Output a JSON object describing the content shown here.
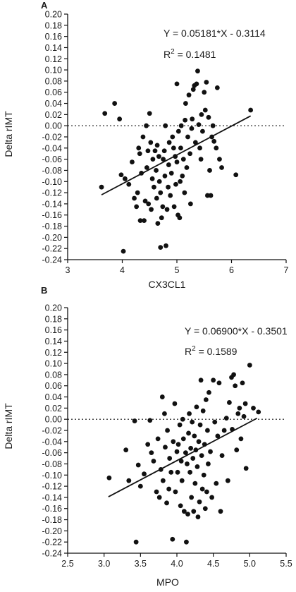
{
  "chart_data": [
    {
      "type": "scatter",
      "panel_label": "A",
      "xlabel": "CX3CL1",
      "ylabel": "Delta rIMT",
      "xlim": [
        3,
        7
      ],
      "ylim": [
        -0.24,
        0.2
      ],
      "x_ticks": [
        "3",
        "4",
        "5",
        "6",
        "7"
      ],
      "y_ticks": [
        "-0.24",
        "-0.22",
        "-0.20",
        "-0.18",
        "-0.16",
        "-0.14",
        "-0.12",
        "-0.10",
        "-0.08",
        "-0.06",
        "-0.04",
        "-0.02",
        "0.00",
        "0.02",
        "0.04",
        "0.06",
        "0.08",
        "0.10",
        "0.12",
        "0.14",
        "0.16",
        "0.18",
        "0.20"
      ],
      "reference_line_y": 0.0,
      "regression": {
        "slope": 0.05181,
        "intercept": -0.3114,
        "x_range": [
          3.62,
          6.35
        ]
      },
      "equation": "Y = 0.05181*X - 0.3114",
      "r2_prefix": "R",
      "r2_sup": "2",
      "r2_suffix": " = 0.1481",
      "points": [
        [
          3.62,
          -0.11
        ],
        [
          3.68,
          0.022
        ],
        [
          3.86,
          0.04
        ],
        [
          3.95,
          0.012
        ],
        [
          3.98,
          -0.088
        ],
        [
          4.05,
          -0.095
        ],
        [
          4.02,
          -0.225
        ],
        [
          4.12,
          -0.105
        ],
        [
          4.18,
          -0.065
        ],
        [
          4.22,
          -0.13
        ],
        [
          4.26,
          -0.145
        ],
        [
          4.28,
          -0.12
        ],
        [
          4.3,
          -0.04
        ],
        [
          4.32,
          -0.05
        ],
        [
          4.33,
          -0.17
        ],
        [
          4.35,
          -0.085
        ],
        [
          4.38,
          -0.02
        ],
        [
          4.4,
          -0.17
        ],
        [
          4.42,
          -0.135
        ],
        [
          4.44,
          0.0
        ],
        [
          4.45,
          -0.075
        ],
        [
          4.47,
          -0.045
        ],
        [
          4.48,
          -0.14
        ],
        [
          4.5,
          0.022
        ],
        [
          4.52,
          -0.03
        ],
        [
          4.53,
          -0.15
        ],
        [
          4.55,
          -0.095
        ],
        [
          4.56,
          -0.06
        ],
        [
          4.58,
          -0.11
        ],
        [
          4.6,
          -0.045
        ],
        [
          4.62,
          -0.08
        ],
        [
          4.63,
          -0.13
        ],
        [
          4.64,
          -0.035
        ],
        [
          4.65,
          -0.175
        ],
        [
          4.67,
          -0.055
        ],
        [
          4.68,
          -0.1
        ],
        [
          4.7,
          -0.12
        ],
        [
          4.7,
          -0.218
        ],
        [
          4.72,
          -0.165
        ],
        [
          4.74,
          -0.145
        ],
        [
          4.75,
          -0.06
        ],
        [
          4.77,
          -0.045
        ],
        [
          4.78,
          -0.09
        ],
        [
          4.79,
          0.0
        ],
        [
          4.8,
          -0.215
        ],
        [
          4.82,
          -0.15
        ],
        [
          4.84,
          -0.11
        ],
        [
          4.85,
          -0.07
        ],
        [
          4.86,
          -0.03
        ],
        [
          4.88,
          -0.125
        ],
        [
          4.9,
          -0.085
        ],
        [
          4.92,
          -0.02
        ],
        [
          4.94,
          -0.04
        ],
        [
          4.95,
          -0.145
        ],
        [
          4.97,
          -0.055
        ],
        [
          4.98,
          -0.105
        ],
        [
          5.0,
          0.075
        ],
        [
          5.0,
          -0.065
        ],
        [
          5.02,
          -0.16
        ],
        [
          5.03,
          -0.01
        ],
        [
          5.05,
          -0.165
        ],
        [
          5.06,
          -0.1
        ],
        [
          5.07,
          -0.04
        ],
        [
          5.08,
          0.0
        ],
        [
          5.1,
          -0.09
        ],
        [
          5.12,
          -0.06
        ],
        [
          5.14,
          -0.12
        ],
        [
          5.15,
          0.01
        ],
        [
          5.16,
          0.04
        ],
        [
          5.18,
          -0.075
        ],
        [
          5.2,
          -0.02
        ],
        [
          5.22,
          0.055
        ],
        [
          5.24,
          -0.05
        ],
        [
          5.25,
          -0.14
        ],
        [
          5.27,
          -0.005
        ],
        [
          5.28,
          0.012
        ],
        [
          5.3,
          0.065
        ],
        [
          5.32,
          0.072
        ],
        [
          5.34,
          -0.03
        ],
        [
          5.36,
          0.075
        ],
        [
          5.38,
          0.098
        ],
        [
          5.4,
          0.002
        ],
        [
          5.42,
          -0.04
        ],
        [
          5.44,
          -0.06
        ],
        [
          5.45,
          0.02
        ],
        [
          5.47,
          -0.01
        ],
        [
          5.5,
          0.06
        ],
        [
          5.52,
          0.028
        ],
        [
          5.54,
          0.078
        ],
        [
          5.56,
          -0.125
        ],
        [
          5.58,
          0.015
        ],
        [
          5.6,
          -0.08
        ],
        [
          5.62,
          -0.125
        ],
        [
          5.64,
          -0.02
        ],
        [
          5.66,
          0.0
        ],
        [
          5.68,
          -0.028
        ],
        [
          5.72,
          -0.04
        ],
        [
          5.74,
          0.068
        ],
        [
          5.78,
          -0.06
        ],
        [
          5.82,
          -0.075
        ],
        [
          6.08,
          -0.088
        ],
        [
          6.35,
          0.028
        ]
      ]
    },
    {
      "type": "scatter",
      "panel_label": "B",
      "xlabel": "MPO",
      "ylabel": "Delta rIMT",
      "xlim": [
        2.5,
        5.5
      ],
      "ylim": [
        -0.24,
        0.2
      ],
      "x_ticks": [
        "2.5",
        "3.0",
        "3.5",
        "4.0",
        "4.5",
        "5.0",
        "5.5"
      ],
      "y_ticks": [
        "-0.24",
        "-0.22",
        "-0.20",
        "-0.18",
        "-0.16",
        "-0.14",
        "-0.12",
        "-0.10",
        "-0.08",
        "-0.06",
        "-0.04",
        "-0.02",
        "0.00",
        "0.02",
        "0.04",
        "0.06",
        "0.08",
        "0.10",
        "0.12",
        "0.14",
        "0.16",
        "0.18",
        "0.20"
      ],
      "reference_line_y": 0.0,
      "regression": {
        "slope": 0.069,
        "intercept": -0.3501,
        "x_range": [
          3.06,
          5.1
        ]
      },
      "equation": "Y = 0.06900*X - 0.3501",
      "r2_prefix": "R",
      "r2_sup": "2",
      "r2_suffix": " = 0.1589",
      "points": [
        [
          3.07,
          -0.105
        ],
        [
          3.3,
          -0.055
        ],
        [
          3.34,
          -0.11
        ],
        [
          3.42,
          -0.003
        ],
        [
          3.44,
          -0.22
        ],
        [
          3.47,
          -0.082
        ],
        [
          3.5,
          -0.12
        ],
        [
          3.55,
          -0.098
        ],
        [
          3.6,
          -0.045
        ],
        [
          3.63,
          -0.002
        ],
        [
          3.65,
          -0.06
        ],
        [
          3.68,
          -0.075
        ],
        [
          3.72,
          -0.13
        ],
        [
          3.74,
          -0.035
        ],
        [
          3.76,
          -0.14
        ],
        [
          3.78,
          -0.09
        ],
        [
          3.8,
          0.04
        ],
        [
          3.81,
          -0.11
        ],
        [
          3.83,
          0.01
        ],
        [
          3.84,
          -0.05
        ],
        [
          3.86,
          -0.15
        ],
        [
          3.87,
          -0.02
        ],
        [
          3.89,
          -0.125
        ],
        [
          3.9,
          -0.07
        ],
        [
          3.92,
          -0.095
        ],
        [
          3.94,
          -0.215
        ],
        [
          3.95,
          -0.04
        ],
        [
          3.97,
          0.028
        ],
        [
          3.98,
          -0.13
        ],
        [
          4.0,
          -0.058
        ],
        [
          4.01,
          -0.095
        ],
        [
          4.02,
          -0.045
        ],
        [
          4.04,
          -0.01
        ],
        [
          4.05,
          -0.155
        ],
        [
          4.06,
          -0.075
        ],
        [
          4.07,
          -0.11
        ],
        [
          4.08,
          0.0
        ],
        [
          4.09,
          -0.035
        ],
        [
          4.1,
          -0.165
        ],
        [
          4.12,
          -0.06
        ],
        [
          4.13,
          -0.22
        ],
        [
          4.14,
          -0.08
        ],
        [
          4.15,
          -0.17
        ],
        [
          4.16,
          -0.025
        ],
        [
          4.17,
          0.01
        ],
        [
          4.18,
          -0.095
        ],
        [
          4.19,
          -0.052
        ],
        [
          4.2,
          -0.14
        ],
        [
          4.21,
          -0.005
        ],
        [
          4.22,
          -0.07
        ],
        [
          4.23,
          -0.165
        ],
        [
          4.24,
          -0.03
        ],
        [
          4.25,
          -0.115
        ],
        [
          4.26,
          -0.055
        ],
        [
          4.27,
          0.022
        ],
        [
          4.28,
          -0.085
        ],
        [
          4.29,
          -0.175
        ],
        [
          4.3,
          -0.04
        ],
        [
          4.31,
          -0.148
        ],
        [
          4.32,
          -0.01
        ],
        [
          4.33,
          0.07
        ],
        [
          4.34,
          -0.065
        ],
        [
          4.35,
          -0.125
        ],
        [
          4.36,
          0.015
        ],
        [
          4.37,
          -0.1
        ],
        [
          4.38,
          -0.045
        ],
        [
          4.39,
          -0.16
        ],
        [
          4.4,
          0.035
        ],
        [
          4.41,
          -0.13
        ],
        [
          4.42,
          -0.02
        ],
        [
          4.43,
          -0.08
        ],
        [
          4.44,
          0.048
        ],
        [
          4.46,
          -0.058
        ],
        [
          4.48,
          -0.14
        ],
        [
          4.5,
          0.07
        ],
        [
          4.52,
          -0.005
        ],
        [
          4.54,
          -0.115
        ],
        [
          4.56,
          -0.03
        ],
        [
          4.58,
          0.065
        ],
        [
          4.6,
          -0.165
        ],
        [
          4.62,
          -0.065
        ],
        [
          4.65,
          -0.02
        ],
        [
          4.68,
          0.002
        ],
        [
          4.7,
          -0.11
        ],
        [
          4.72,
          0.03
        ],
        [
          4.75,
          0.075
        ],
        [
          4.76,
          -0.018
        ],
        [
          4.78,
          0.08
        ],
        [
          4.8,
          0.06
        ],
        [
          4.82,
          -0.055
        ],
        [
          4.84,
          0.01
        ],
        [
          4.86,
          0.02
        ],
        [
          4.88,
          -0.035
        ],
        [
          4.9,
          0.065
        ],
        [
          4.92,
          0.005
        ],
        [
          4.94,
          0.028
        ],
        [
          4.95,
          -0.088
        ],
        [
          5.0,
          0.097
        ],
        [
          5.05,
          0.02
        ],
        [
          5.12,
          0.013
        ]
      ]
    }
  ]
}
